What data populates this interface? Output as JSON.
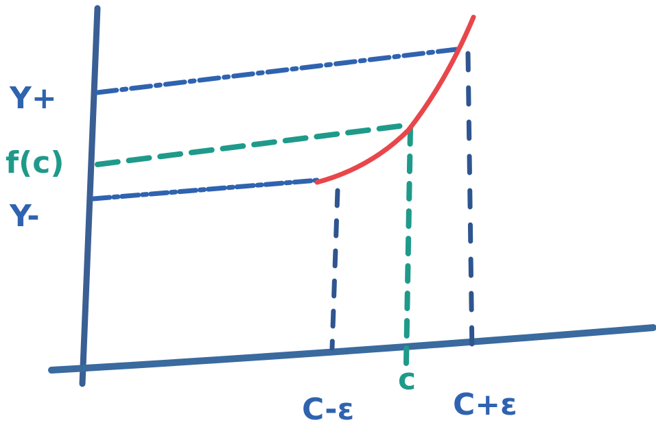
{
  "labels": {
    "y_plus": "Y+",
    "f_c": "f(c)",
    "y_minus": "Y-",
    "c_minus_eps": "C-ε",
    "c": "c",
    "c_plus_eps": "C+ε"
  }
}
